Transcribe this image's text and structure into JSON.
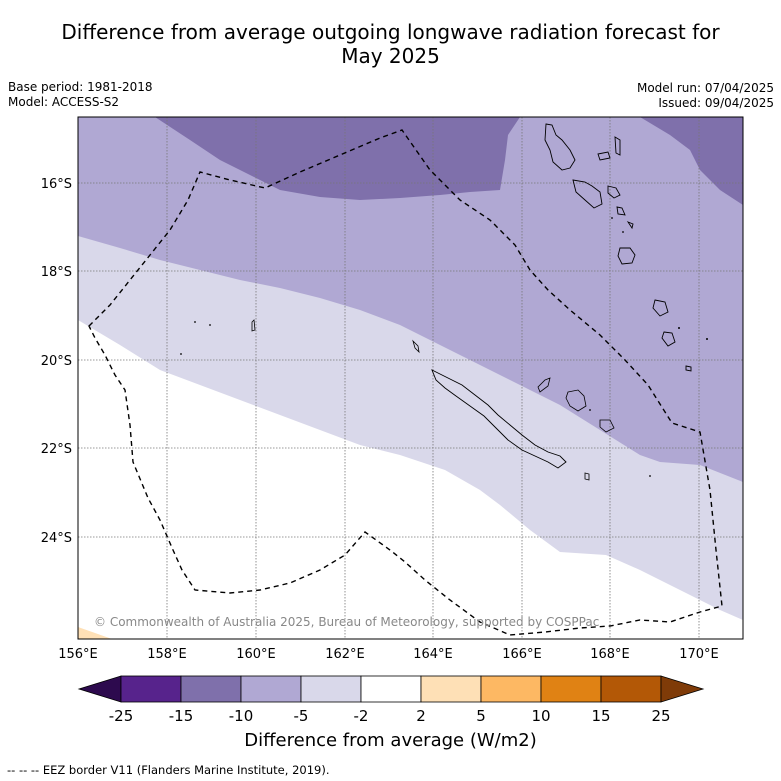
{
  "title_line1": "Difference from average outgoing longwave radiation forecast for",
  "title_line2": "May 2025",
  "base_period": "Base period: 1981-2018",
  "model": "Model: ACCESS-S2",
  "model_run": "Model run: 07/04/2025",
  "issued": "Issued: 09/04/2025",
  "copyright": "© Commonwealth of Australia 2025, Bureau of Meteorology, supported by COSPPac",
  "lat_labels": [
    "16°S",
    "18°S",
    "20°S",
    "22°S",
    "24°S"
  ],
  "lon_labels": [
    "156°E",
    "158°E",
    "160°E",
    "162°E",
    "164°E",
    "166°E",
    "168°E",
    "170°E"
  ],
  "colorbar": {
    "title": "Difference from average (W/m2)",
    "ticks": [
      "-25",
      "-15",
      "-10",
      "-5",
      "-2",
      "2",
      "5",
      "10",
      "15",
      "25"
    ],
    "colors": [
      "#2d0a4e",
      "#57238c",
      "#7f70ab",
      "#b0a8d3",
      "#d9d8ea",
      "#ffffff",
      "#fee0b6",
      "#fdb863",
      "#e08214",
      "#b35806",
      "#7f3b08"
    ]
  },
  "footnote": "--  --  -- EEZ border V11 (Flanders Marine Institute, 2019)."
}
